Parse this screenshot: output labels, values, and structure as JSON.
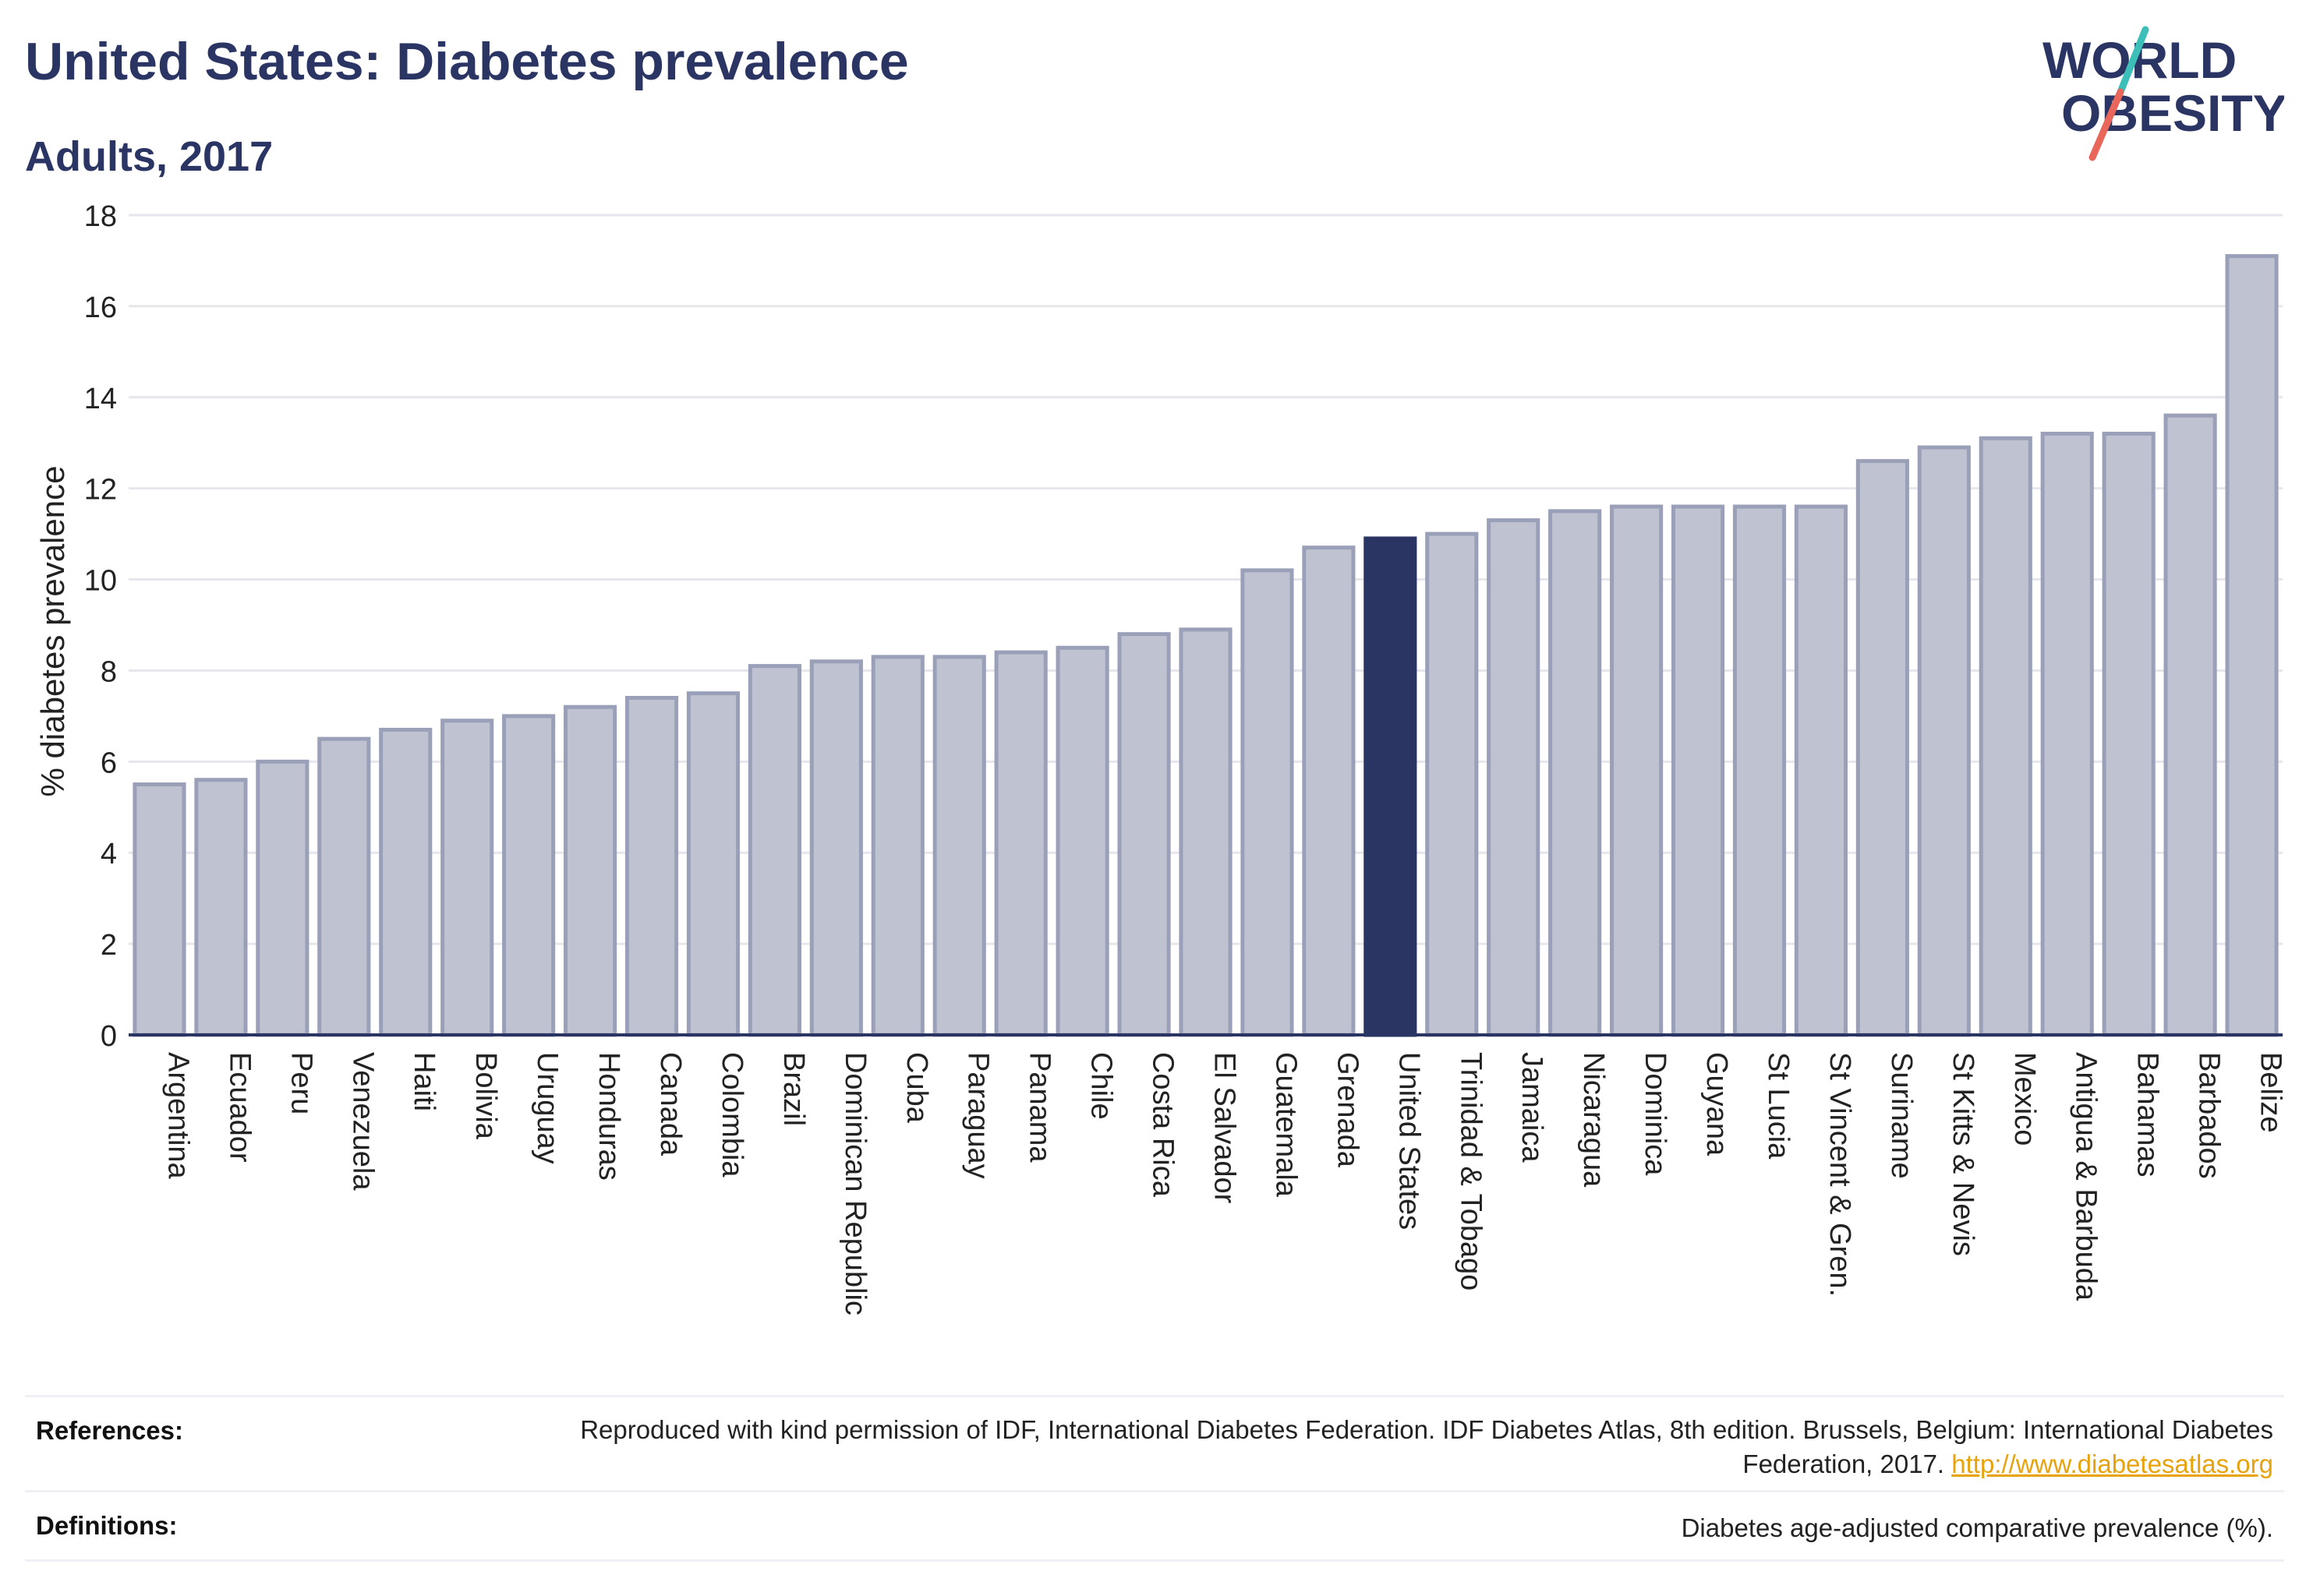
{
  "header": {
    "title": "United States: Diabetes prevalence",
    "subtitle": "Adults, 2017"
  },
  "logo": {
    "line1": "WORLD",
    "line2": "OBESITY",
    "colors": {
      "text": "#2b3563",
      "slash_teal": "#3bbfb8",
      "slash_coral": "#e8665a"
    }
  },
  "colors": {
    "bar": "#bfc2d0",
    "bar_stroke": "#9aa0b8",
    "highlight": "#2b3563",
    "grid": "#e6e6ec",
    "axis": "#2b3563"
  },
  "chart_data": {
    "type": "bar",
    "title": "United States: Diabetes prevalence",
    "subtitle": "Adults, 2017",
    "xlabel": "",
    "ylabel": "% diabetes prevalence",
    "ylim": [
      0,
      18
    ],
    "yticks": [
      0,
      2,
      4,
      6,
      8,
      10,
      12,
      14,
      16,
      18
    ],
    "grid": true,
    "highlight": "United States",
    "categories": [
      "Argentina",
      "Ecuador",
      "Peru",
      "Venezuela",
      "Haiti",
      "Bolivia",
      "Uruguay",
      "Honduras",
      "Canada",
      "Colombia",
      "Brazil",
      "Dominican Republic",
      "Cuba",
      "Paraguay",
      "Panama",
      "Chile",
      "Costa Rica",
      "El Salvador",
      "Guatemala",
      "Grenada",
      "United States",
      "Trinidad & Tobago",
      "Jamaica",
      "Nicaragua",
      "Dominica",
      "Guyana",
      "St Lucia",
      "St Vincent & Gren.",
      "Suriname",
      "St Kitts & Nevis",
      "Mexico",
      "Antigua & Barbuda",
      "Bahamas",
      "Barbados",
      "Belize"
    ],
    "values": [
      5.5,
      5.6,
      6.0,
      6.5,
      6.7,
      6.9,
      7.0,
      7.2,
      7.4,
      7.5,
      8.1,
      8.2,
      8.3,
      8.3,
      8.4,
      8.5,
      8.8,
      8.9,
      10.2,
      10.7,
      10.9,
      11.0,
      11.3,
      11.5,
      11.6,
      11.6,
      11.6,
      11.6,
      12.6,
      12.9,
      13.1,
      13.2,
      13.2,
      13.6,
      17.1
    ]
  },
  "footer": {
    "references_label": "References:",
    "references_text": "Reproduced with kind permission of IDF, International Diabetes Federation. IDF Diabetes Atlas, 8th edition. Brussels, Belgium: International Diabetes Federation, 2017.",
    "references_link": "http://www.diabetesatlas.org",
    "definitions_label": "Definitions:",
    "definitions_text": "Diabetes age-adjusted comparative prevalence (%)."
  }
}
